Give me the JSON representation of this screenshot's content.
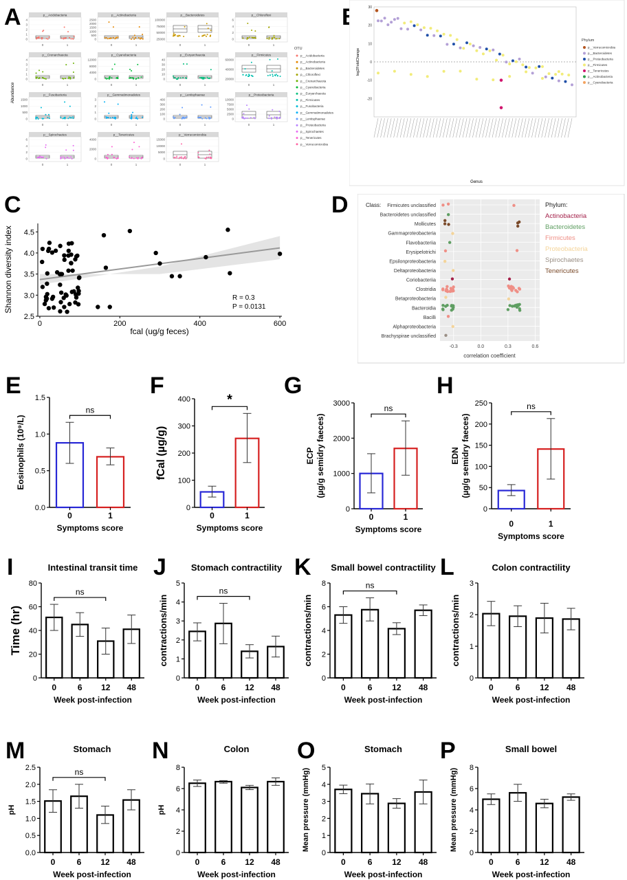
{
  "panel_labels": [
    "A",
    "B",
    "C",
    "D",
    "E",
    "F",
    "G",
    "H",
    "I",
    "J",
    "K",
    "L",
    "M",
    "N",
    "O",
    "P"
  ],
  "colors": {
    "blue": "#2727d6",
    "red": "#d62020",
    "black": "#000000",
    "Verrucomicrobia": "#b3541e",
    "Bacteroidetes": "#b3a0d6",
    "Proteobacteria": "#1f4fa8",
    "Firmicutes": "#f2ec7a",
    "Tenericutes": "#d0166e",
    "Actinobacteria": "#2e9e49",
    "Cyanobacteria": "#f4a460"
  },
  "panelA": {
    "ylabel": "Abundance",
    "legend_title": "OTU",
    "legend": [
      {
        "name": "p__Acidobacteria",
        "color": "#f8766d"
      },
      {
        "name": "p__Actinobacteria",
        "color": "#e58700"
      },
      {
        "name": "p__Bacteroidetes",
        "color": "#c99800"
      },
      {
        "name": "p__Chloroflexi",
        "color": "#a3a500"
      },
      {
        "name": "p__Crenarchaeota",
        "color": "#6bb100"
      },
      {
        "name": "p__Cyanobacteria",
        "color": "#00ba38"
      },
      {
        "name": "p__Euryarchaeota",
        "color": "#00bf7d"
      },
      {
        "name": "p__Firmicutes",
        "color": "#00c0af"
      },
      {
        "name": "p__Fusobacteria",
        "color": "#00bcd8"
      },
      {
        "name": "p__Gemmatimonadetes",
        "color": "#00b0f6"
      },
      {
        "name": "p__Lentisphaerae",
        "color": "#619cff"
      },
      {
        "name": "p__Proteobacteria",
        "color": "#b983ff"
      },
      {
        "name": "p__Spirochaetes",
        "color": "#e76bf3"
      },
      {
        "name": "p__Tenericutes",
        "color": "#fd61d1"
      },
      {
        "name": "p__Verrucomicrobia",
        "color": "#ff67a4"
      }
    ],
    "facets": [
      {
        "title": "p__Acidobacteria",
        "ticks": [
          "0",
          "1",
          "2",
          "3",
          "4"
        ],
        "color": "#f8766d"
      },
      {
        "title": "p__Actinobacteria",
        "ticks": [
          "0",
          "500",
          "1000",
          "1500",
          "2000",
          "2500"
        ],
        "color": "#e58700"
      },
      {
        "title": "p__Bacteroidetes",
        "ticks": [
          "25000",
          "50000",
          "75000",
          "100000"
        ],
        "color": "#c99800"
      },
      {
        "title": "p__Chloroflexi",
        "ticks": [
          "0",
          "2",
          "4",
          "6"
        ],
        "color": "#a3a500"
      },
      {
        "title": "p__Crenarchaeota",
        "ticks": [
          "0",
          "1",
          "2",
          "3",
          "4"
        ],
        "color": "#6bb100"
      },
      {
        "title": "p__Cyanobacteria",
        "ticks": [
          "0",
          "4000",
          "8000",
          "12000"
        ],
        "color": "#00ba38"
      },
      {
        "title": "p__Euryarchaeota",
        "ticks": [
          "0",
          "10",
          "20",
          "30",
          "40"
        ],
        "color": "#00bf7d"
      },
      {
        "title": "p__Firmicutes",
        "ticks": [
          "20000",
          "40000",
          "60000"
        ],
        "color": "#00c0af"
      },
      {
        "title": "p__Fusobacteria",
        "ticks": [
          "0",
          "500",
          "1000",
          "1500"
        ],
        "color": "#00bcd8"
      },
      {
        "title": "p__Gemmatimonadetes",
        "ticks": [
          "0",
          "1",
          "2",
          "3"
        ],
        "color": "#00b0f6"
      },
      {
        "title": "p__Lentisphaerae",
        "ticks": [
          "0",
          "100",
          "200",
          "300",
          "400"
        ],
        "color": "#619cff"
      },
      {
        "title": "p__Proteobacteria",
        "ticks": [
          "0",
          "2500",
          "5000",
          "7500",
          "10000"
        ],
        "color": "#b983ff"
      },
      {
        "title": "p__Spirochaetes",
        "ticks": [
          "0",
          "2",
          "4",
          "6"
        ],
        "color": "#e76bf3"
      },
      {
        "title": "p__Tenericutes",
        "ticks": [
          "0",
          "2000",
          "4000"
        ],
        "color": "#fd61d1"
      },
      {
        "title": "p__Verrucomicrobia",
        "ticks": [
          "0",
          "5000",
          "10000",
          "15000"
        ],
        "color": "#ff67a4"
      }
    ],
    "xticks": [
      "0",
      "1"
    ]
  },
  "panelB": {
    "ylabel": "log2FoldChange",
    "xlabel": "Genus",
    "legend_title": "Phylum",
    "yticks": [
      "-20",
      "-10",
      "0",
      "10",
      "20",
      "30"
    ],
    "legend": [
      {
        "name": "p__Verrucomicrobia",
        "color": "#b3541e"
      },
      {
        "name": "p__Bacteroidetes",
        "color": "#b3a0d6"
      },
      {
        "name": "p__Proteobacteria",
        "color": "#1f4fa8"
      },
      {
        "name": "p__Firmicutes",
        "color": "#f2ec7a"
      },
      {
        "name": "p__Tenericutes",
        "color": "#d0166e"
      },
      {
        "name": "p__Actinobacteria",
        "color": "#2e9e49"
      },
      {
        "name": "p__Cyanobacteria",
        "color": "#f4a460"
      }
    ]
  },
  "panelC": {
    "ylabel": "Shannon diversity index",
    "xlabel": "fcal (ug/g feces)",
    "annotation_r": "R = 0.3",
    "annotation_p": "P = 0.0131",
    "xticks": [
      "0",
      "200",
      "400",
      "600"
    ],
    "yticks": [
      "2.5",
      "3.0",
      "3.5",
      "4.0",
      "4.5"
    ]
  },
  "panelD": {
    "class_label": "Class:",
    "phylum_label": "Phylum:",
    "xlabel": "correlation coefficient",
    "xticks": [
      "-0.3",
      "0.0",
      "0.3",
      "0.6"
    ],
    "classes": [
      "Firmicutes unclassified",
      "Bacteroidetes unclassified",
      "Mollicutes",
      "Gammaproteobacteria",
      "Flavobacteriia",
      "Erysipelotrichi",
      "Epsilonproteobacteria",
      "Deltaproteobacteria",
      "Coriobacteriia",
      "Clostridia",
      "Betaproteobacteria",
      "Bacteroidia",
      "Bacilli",
      "Alphaproteobacteria",
      "Brachyspirae unclassified"
    ],
    "phyla": [
      {
        "name": "Actinobacteria",
        "color": "#a3214a"
      },
      {
        "name": "Bacteroidetes",
        "color": "#5f9e62"
      },
      {
        "name": "Firmicutes",
        "color": "#ef8f86"
      },
      {
        "name": "Proteobacteria",
        "color": "#f4d49a"
      },
      {
        "name": "Spirochaetes",
        "color": "#9a8f85"
      },
      {
        "name": "Tenericutes",
        "color": "#7a4a2a"
      }
    ]
  },
  "chart_data": [
    {
      "panel": "E",
      "type": "bar",
      "ylabel": "Eosinophils (10⁹/L)",
      "xlabel": "Symptoms score",
      "categories": [
        "0",
        "1"
      ],
      "values": [
        0.88,
        0.69
      ],
      "err_low": [
        0.6,
        0.58
      ],
      "err_high": [
        1.16,
        0.81
      ],
      "ylim": [
        0,
        1.5
      ],
      "yticks": [
        "0.0",
        "0.5",
        "1.0",
        "1.5"
      ],
      "sig": "ns",
      "bar_colors": [
        "#2727d6",
        "#d62020"
      ]
    },
    {
      "panel": "F",
      "type": "bar",
      "ylabel": "fCal (µg/g)",
      "xlabel": "Symptoms score",
      "categories": [
        "0",
        "1"
      ],
      "values": [
        57,
        254
      ],
      "err_low": [
        38,
        165
      ],
      "err_high": [
        78,
        346
      ],
      "ylim": [
        0,
        400
      ],
      "yticks": [
        "0",
        "100",
        "200",
        "300",
        "400"
      ],
      "sig": "*",
      "bar_colors": [
        "#2727d6",
        "#d62020"
      ]
    },
    {
      "panel": "G",
      "type": "bar",
      "ylabel": "ECP",
      "ylabel2": "(µg/g semidry faeces)",
      "xlabel": "Symptoms score",
      "categories": [
        "0",
        "1"
      ],
      "values": [
        1000,
        1710
      ],
      "err_low": [
        450,
        950
      ],
      "err_high": [
        1560,
        2490
      ],
      "ylim": [
        0,
        3000
      ],
      "yticks": [
        "0",
        "1000",
        "2000",
        "3000"
      ],
      "sig": "ns",
      "bar_colors": [
        "#2727d6",
        "#d62020"
      ]
    },
    {
      "panel": "H",
      "type": "bar",
      "ylabel": "EDN",
      "ylabel2": "(µg/g semidry faeces)",
      "xlabel": "Symptoms score",
      "categories": [
        "0",
        "1"
      ],
      "values": [
        43,
        141
      ],
      "err_low": [
        31,
        70
      ],
      "err_high": [
        57,
        213
      ],
      "ylim": [
        0,
        250
      ],
      "yticks": [
        "0",
        "50",
        "100",
        "150",
        "200",
        "250"
      ],
      "sig": "ns",
      "bar_colors": [
        "#2727d6",
        "#d62020"
      ]
    },
    {
      "panel": "I",
      "type": "bar",
      "title": "Intestinal transit time",
      "ylabel": "Time (hr)",
      "xlabel": "Week post-infection",
      "categories": [
        "0",
        "6",
        "12",
        "48"
      ],
      "values": [
        51,
        45,
        31,
        41
      ],
      "err_low": [
        40,
        35,
        20,
        29
      ],
      "err_high": [
        62,
        55,
        42,
        53
      ],
      "ylim": [
        0,
        80
      ],
      "yticks": [
        "0",
        "20",
        "40",
        "60",
        "80"
      ],
      "sig": "ns",
      "sig_span": [
        0,
        2
      ]
    },
    {
      "panel": "J",
      "type": "bar",
      "title": "Stomach contractility",
      "ylabel": "contractions/min",
      "xlabel": "Week post-infection",
      "categories": [
        "0",
        "6",
        "12",
        "48"
      ],
      "values": [
        2.45,
        2.87,
        1.4,
        1.65
      ],
      "err_low": [
        1.95,
        1.8,
        1.05,
        1.1
      ],
      "err_high": [
        2.9,
        3.93,
        1.75,
        2.2
      ],
      "ylim": [
        0,
        5
      ],
      "yticks": [
        "0",
        "1",
        "2",
        "3",
        "4",
        "5"
      ],
      "sig": "ns",
      "sig_span": [
        0,
        2
      ]
    },
    {
      "panel": "K",
      "type": "bar",
      "title": "Small bowel contractility",
      "ylabel": "contractions/min",
      "xlabel": "Week post-infection",
      "categories": [
        "0",
        "6",
        "12",
        "48"
      ],
      "values": [
        5.3,
        5.75,
        4.15,
        5.7
      ],
      "err_low": [
        4.6,
        4.8,
        3.65,
        5.25
      ],
      "err_high": [
        6.0,
        6.75,
        4.65,
        6.15
      ],
      "ylim": [
        0,
        8
      ],
      "yticks": [
        "0",
        "2",
        "4",
        "6",
        "8"
      ],
      "sig": "ns",
      "sig_span": [
        0,
        2
      ]
    },
    {
      "panel": "L",
      "type": "bar",
      "title": "Colon contractility",
      "ylabel": "contractions/min",
      "xlabel": "Week post-infection",
      "categories": [
        "0",
        "6",
        "12",
        "48"
      ],
      "values": [
        2.03,
        1.95,
        1.89,
        1.86
      ],
      "err_low": [
        1.65,
        1.62,
        1.42,
        1.52
      ],
      "err_high": [
        2.42,
        2.28,
        2.36,
        2.2
      ],
      "ylim": [
        0,
        3
      ],
      "yticks": [
        "0",
        "1",
        "2",
        "3"
      ]
    },
    {
      "panel": "M",
      "type": "bar",
      "title": "Stomach",
      "ylabel": "pH",
      "xlabel": "Week post-infection",
      "categories": [
        "0",
        "6",
        "12",
        "48"
      ],
      "values": [
        1.51,
        1.65,
        1.1,
        1.54
      ],
      "err_low": [
        1.18,
        1.3,
        0.85,
        1.25
      ],
      "err_high": [
        1.84,
        2.0,
        1.36,
        1.84
      ],
      "ylim": [
        0,
        2.5
      ],
      "yticks": [
        "0.0",
        "0.5",
        "1.0",
        "1.5",
        "2.0",
        "2.5"
      ],
      "sig": "ns",
      "sig_span": [
        0,
        2
      ]
    },
    {
      "panel": "N",
      "type": "bar",
      "title": "Colon",
      "ylabel": "pH",
      "xlabel": "Week post-infection",
      "categories": [
        "0",
        "6",
        "12",
        "48"
      ],
      "values": [
        6.5,
        6.65,
        6.1,
        6.65
      ],
      "err_low": [
        6.2,
        6.5,
        5.9,
        6.3
      ],
      "err_high": [
        6.8,
        6.75,
        6.3,
        7.0
      ],
      "ylim": [
        0,
        8
      ],
      "yticks": [
        "0",
        "2",
        "4",
        "6",
        "8"
      ]
    },
    {
      "panel": "O",
      "type": "bar",
      "title": "Stomach",
      "ylabel": "Mean pressure (mmHg)",
      "xlabel": "Week post-infection",
      "categories": [
        "0",
        "6",
        "12",
        "48"
      ],
      "values": [
        3.7,
        3.45,
        2.88,
        3.55
      ],
      "err_low": [
        3.45,
        2.85,
        2.6,
        2.85
      ],
      "err_high": [
        3.95,
        4.02,
        3.16,
        4.25
      ],
      "ylim": [
        0,
        5
      ],
      "yticks": [
        "0",
        "1",
        "2",
        "3",
        "4",
        "5"
      ]
    },
    {
      "panel": "P",
      "type": "bar",
      "title": "Small bowel",
      "ylabel": "Mean pressure (mmHg)",
      "xlabel": "Week post-infection",
      "categories": [
        "0",
        "6",
        "12",
        "48"
      ],
      "values": [
        5.0,
        5.6,
        4.6,
        5.2
      ],
      "err_low": [
        4.5,
        4.8,
        4.2,
        4.9
      ],
      "err_high": [
        5.5,
        6.4,
        5.0,
        5.5
      ],
      "ylim": [
        0,
        8
      ],
      "yticks": [
        "0",
        "2",
        "4",
        "6",
        "8"
      ]
    }
  ]
}
